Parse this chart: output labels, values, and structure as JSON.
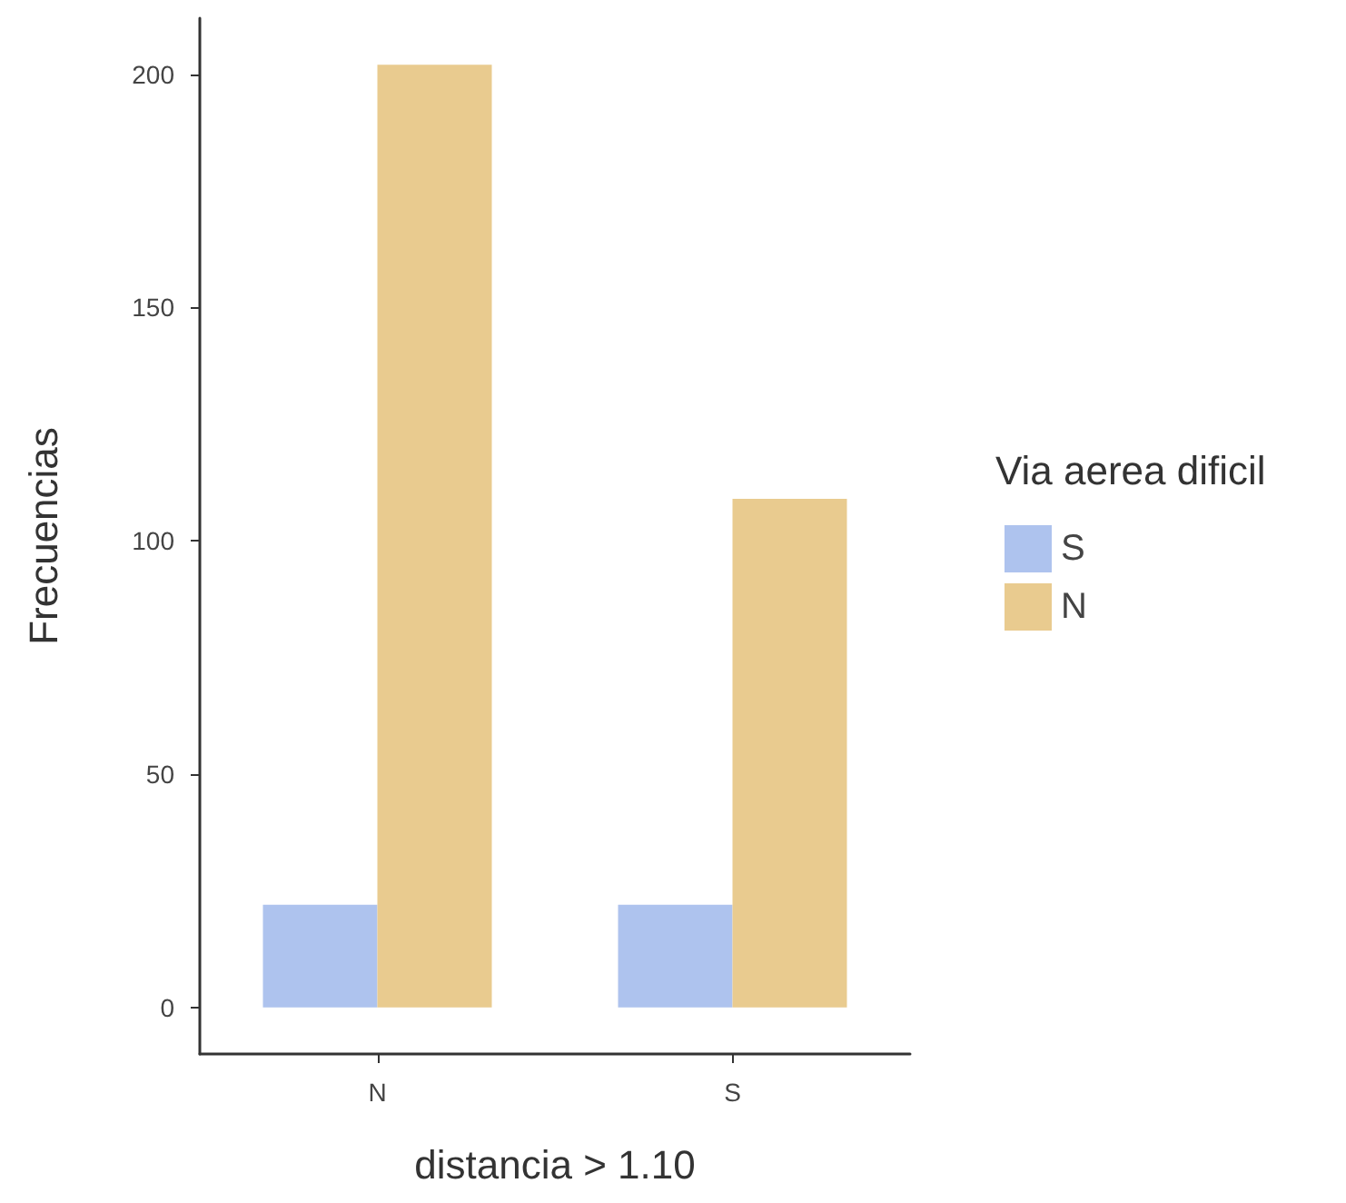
{
  "chart_data": {
    "type": "bar",
    "xlabel": "distancia > 1.10",
    "ylabel": "Frecuencias",
    "legend_title": "Via aerea dificil",
    "categories": [
      "N",
      "S"
    ],
    "series": [
      {
        "name": "S",
        "color": "#aec3ee",
        "values": [
          22,
          22
        ]
      },
      {
        "name": "N",
        "color": "#e9cb8f",
        "values": [
          202,
          109
        ]
      }
    ],
    "ylim": [
      -10,
      212
    ],
    "yticks": [
      0,
      50,
      100,
      150,
      200
    ],
    "legend": "right"
  }
}
